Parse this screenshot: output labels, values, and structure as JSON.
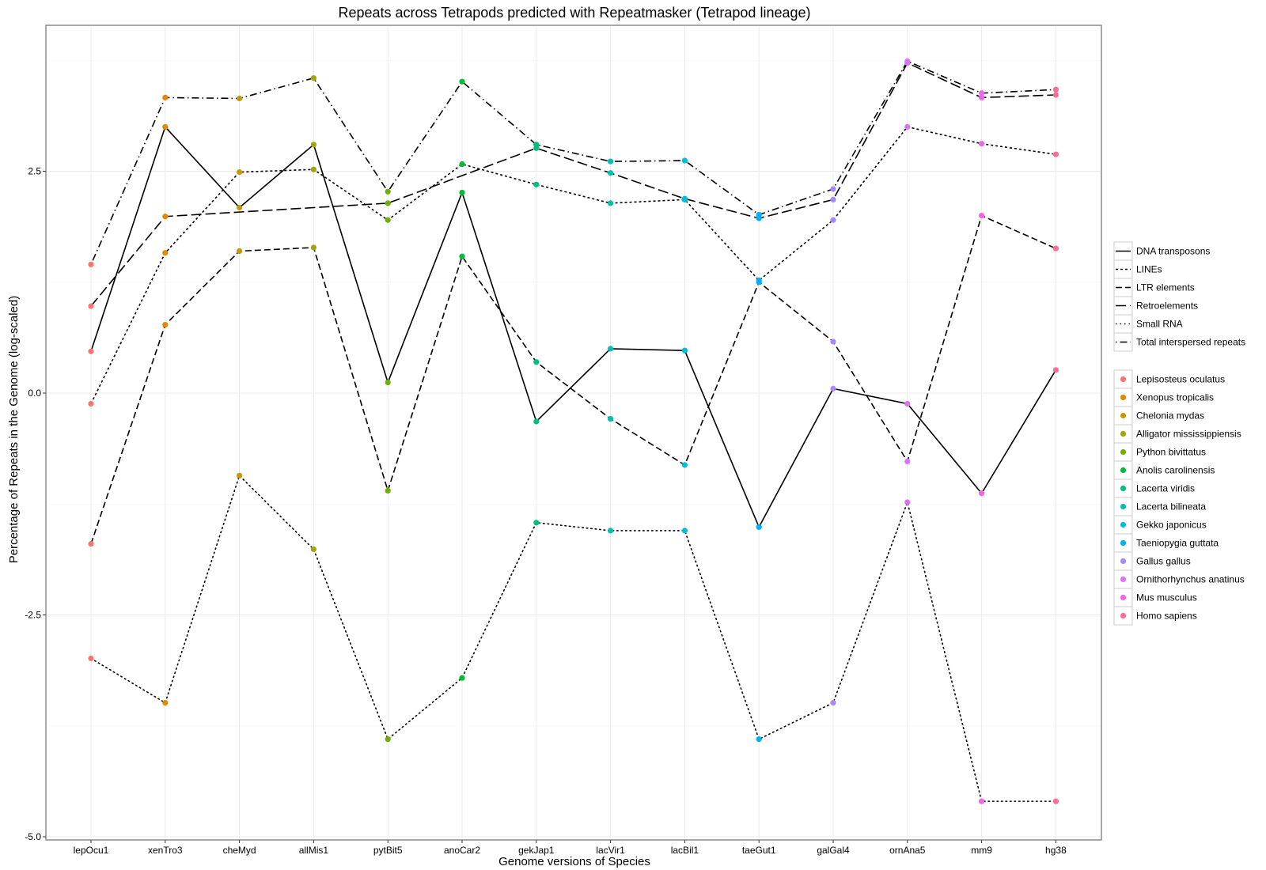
{
  "chart_data": {
    "type": "line",
    "title": "Repeats across Tetrapods predicted with Repeatmasker (Tetrapod lineage)",
    "xlabel": "Genome versions of Species",
    "ylabel": "Percentage of Repeats in the Genome (log-scaled)",
    "ylim": [
      -5.0,
      4.14
    ],
    "yticks": [
      2.5,
      0.0,
      -2.5,
      -5.0
    ],
    "ytick_labels": [
      "2.5",
      "0.0",
      "-2.5",
      "-5.0"
    ],
    "grid": true,
    "legend_position": "right",
    "categories": [
      "lepOcu1",
      "xenTro3",
      "cheMyd",
      "allMis1",
      "pytBit5",
      "anoCar2",
      "gekJap1",
      "lacVir1",
      "lacBil1",
      "taeGut1",
      "galGal4",
      "ornAna5",
      "mm9",
      "hg38"
    ],
    "species": [
      "Lepisosteus oculatus",
      "Xenopus tropicalis",
      "Chelonia mydas",
      "Alligator mississippiensis",
      "Python bivittatus",
      "Anolis carolinensis",
      "Lacerta viridis",
      "Lacerta bilineata",
      "Gekko japonicus",
      "Taeniopygia guttata",
      "Gallus gallus",
      "Ornithorhynchus anatinus",
      "Mus musculus",
      "Homo sapiens"
    ],
    "species_colors": [
      "#F8766D",
      "#E58700",
      "#C99800",
      "#A3A500",
      "#6BB100",
      "#00BA38",
      "#00BF7D",
      "#00C0AF",
      "#00BCD8",
      "#00B0F6",
      "#A58AFF",
      "#DC71FA",
      "#F564E3",
      "#FF6C91"
    ],
    "series": [
      {
        "name": "DNA transposons",
        "linetype": "solid",
        "values": [
          0.47,
          3.0,
          2.09,
          2.8,
          0.12,
          2.26,
          -0.32,
          0.5,
          0.48,
          -1.51,
          0.05,
          -0.12,
          -1.13,
          0.26
        ]
      },
      {
        "name": "LINEs",
        "linetype": "dotted-dash",
        "values": [
          -0.12,
          1.58,
          2.49,
          2.52,
          1.95,
          2.58,
          2.35,
          2.14,
          2.18,
          1.27,
          1.95,
          3.0,
          2.81,
          2.69
        ]
      },
      {
        "name": "LTR elements",
        "linetype": "dashed",
        "values": [
          -1.7,
          0.77,
          1.6,
          1.64,
          -1.1,
          1.54,
          0.35,
          -0.29,
          -0.81,
          1.25,
          0.58,
          -0.77,
          2.0,
          1.63
        ]
      },
      {
        "name": "Retroelements",
        "linetype": "long-dashed",
        "values": [
          0.98,
          1.99,
          null,
          null,
          2.14,
          null,
          2.76,
          2.48,
          2.19,
          1.97,
          2.18,
          3.72,
          3.33,
          3.36
        ]
      },
      {
        "name": "Small RNA",
        "linetype": "dotted",
        "values": [
          -2.99,
          -3.49,
          -0.93,
          -1.76,
          -3.9,
          -3.21,
          -1.46,
          -1.55,
          -1.55,
          -3.9,
          -3.49,
          -1.23,
          -4.6,
          -4.6
        ]
      },
      {
        "name": "Total interspersed repeats",
        "linetype": "dot-dash",
        "values": [
          1.45,
          3.33,
          3.32,
          3.55,
          2.27,
          3.51,
          2.8,
          2.61,
          2.62,
          2.01,
          2.3,
          3.74,
          3.38,
          3.42
        ]
      }
    ],
    "legend_linetype_labels": [
      "DNA transposons",
      "LINEs",
      "LTR elements",
      "Retroelements",
      "Small RNA",
      "Total interspersed repeats"
    ]
  }
}
